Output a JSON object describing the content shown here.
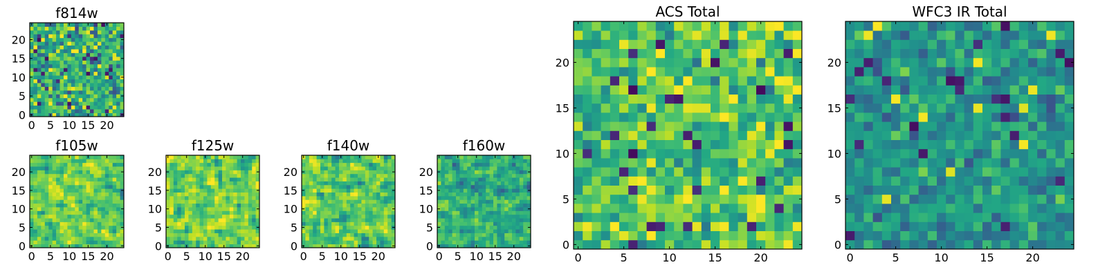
{
  "figure": "Heatmap grid of HST filter images and combined totals",
  "chart_data": [
    {
      "type": "heatmap",
      "name": "f814w",
      "title": "f814w",
      "grid": [
        25,
        25
      ],
      "cell_scale": 1,
      "xticks": [
        0,
        5,
        10,
        15,
        20
      ],
      "yticks": [
        0,
        5,
        10,
        15,
        20
      ],
      "xlim": [
        0,
        25
      ],
      "ylim": [
        0,
        25
      ],
      "colormap": "viridis",
      "seed": 11,
      "mean": 0.62,
      "spread": 0.22,
      "smooth": 0
    },
    {
      "type": "heatmap",
      "name": "f105w",
      "title": "f105w",
      "grid": [
        25,
        25
      ],
      "cell_scale": 1,
      "xticks": [
        0,
        5,
        10,
        15,
        20
      ],
      "yticks": [
        0,
        5,
        10,
        15,
        20
      ],
      "xlim": [
        0,
        25
      ],
      "ylim": [
        0,
        25
      ],
      "colormap": "viridis",
      "seed": 23,
      "mean": 0.78,
      "spread": 0.22,
      "smooth": 1
    },
    {
      "type": "heatmap",
      "name": "f125w",
      "title": "f125w",
      "grid": [
        25,
        25
      ],
      "cell_scale": 1,
      "xticks": [
        0,
        5,
        10,
        15,
        20
      ],
      "yticks": [
        0,
        5,
        10,
        15,
        20
      ],
      "xlim": [
        0,
        25
      ],
      "ylim": [
        0,
        25
      ],
      "colormap": "viridis",
      "seed": 37,
      "mean": 0.8,
      "spread": 0.22,
      "smooth": 1
    },
    {
      "type": "heatmap",
      "name": "f140w",
      "title": "f140w",
      "grid": [
        25,
        25
      ],
      "cell_scale": 1,
      "xticks": [
        0,
        5,
        10,
        15,
        20
      ],
      "yticks": [
        0,
        5,
        10,
        15,
        20
      ],
      "xlim": [
        0,
        25
      ],
      "ylim": [
        0,
        25
      ],
      "colormap": "viridis",
      "seed": 41,
      "mean": 0.76,
      "spread": 0.24,
      "smooth": 1
    },
    {
      "type": "heatmap",
      "name": "f160w",
      "title": "f160w",
      "grid": [
        25,
        25
      ],
      "cell_scale": 1,
      "xticks": [
        0,
        5,
        10,
        15,
        20
      ],
      "yticks": [
        0,
        5,
        10,
        15,
        20
      ],
      "xlim": [
        0,
        25
      ],
      "ylim": [
        0,
        25
      ],
      "colormap": "viridis",
      "seed": 53,
      "mean": 0.66,
      "spread": 0.24,
      "smooth": 1
    },
    {
      "type": "heatmap",
      "name": "acs-total",
      "title": "ACS Total",
      "grid": [
        25,
        25
      ],
      "cell_scale": 1,
      "xticks": [
        0,
        5,
        10,
        15,
        20
      ],
      "yticks": [
        0,
        5,
        10,
        15,
        20
      ],
      "xlim": [
        0,
        25
      ],
      "ylim": [
        0,
        25
      ],
      "colormap": "viridis",
      "seed": 67,
      "mean": 0.72,
      "spread": 0.18,
      "smooth": 0
    },
    {
      "type": "heatmap",
      "name": "wfc3-ir-total",
      "title": "WFC3 IR Total",
      "grid": [
        25,
        25
      ],
      "cell_scale": 1,
      "xticks": [
        0,
        5,
        10,
        15,
        20
      ],
      "yticks": [
        0,
        5,
        10,
        15,
        20
      ],
      "xlim": [
        0,
        25
      ],
      "ylim": [
        0,
        25
      ],
      "colormap": "viridis",
      "seed": 79,
      "mean": 0.52,
      "spread": 0.14,
      "smooth": 0
    }
  ]
}
